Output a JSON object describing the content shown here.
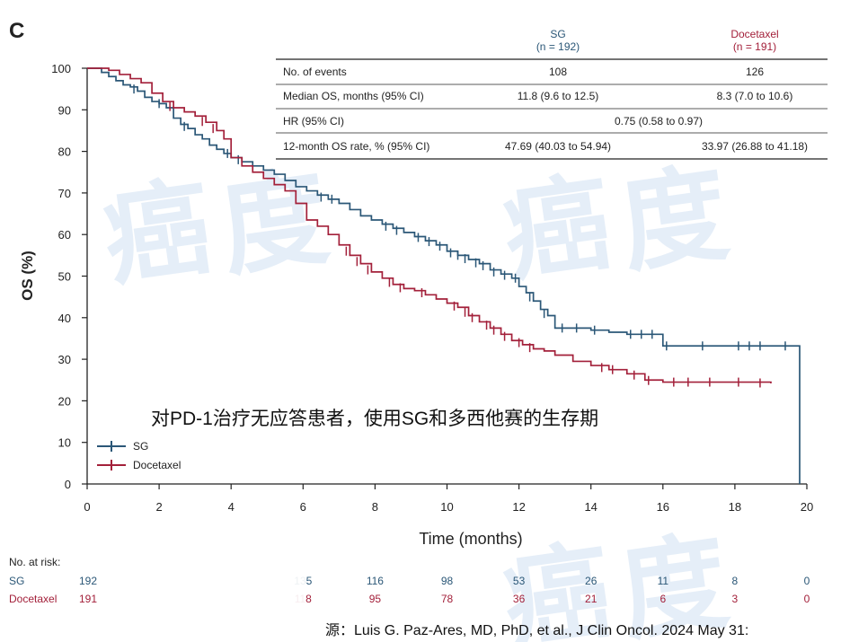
{
  "panel_letter": "C",
  "table": {
    "columns": [
      {
        "name": "SG",
        "n": "(n = 192)"
      },
      {
        "name": "Docetaxel",
        "n": "(n = 191)"
      }
    ],
    "rows": [
      {
        "label": "No. of events",
        "sg": "108",
        "doc": "126"
      },
      {
        "label": "Median OS, months (95% CI)",
        "sg": "11.8 (9.6 to 12.5)",
        "doc": "8.3 (7.0 to 10.6)"
      },
      {
        "label": "HR (95% CI)",
        "merged": "0.75 (0.58 to 0.97)"
      },
      {
        "label": "12-month OS rate, % (95% CI)",
        "sg": "47.69 (40.03 to 54.94)",
        "doc": "33.97 (26.88 to 41.18)"
      }
    ]
  },
  "overlay_caption": "对PD-1治疗无应答患者，使用SG和多西他赛的生存期",
  "source_note": "源：Luis G. Paz-Ares, MD, PhD, et al., J Clin Oncol. 2024 May 31:",
  "watermark_glyphs": [
    "癌",
    "度"
  ],
  "risk_table": {
    "title": "No. at risk:",
    "rows": [
      {
        "name": "SG",
        "values": [
          "192",
          "",
          "",
          "",
          "135",
          "116",
          "98",
          "53",
          "26",
          "11",
          "8",
          "0"
        ]
      },
      {
        "name": "Docetaxel",
        "values": [
          "191",
          "",
          "",
          "",
          "118",
          "95",
          "78",
          "36",
          "21",
          "6",
          "3",
          "0"
        ]
      }
    ]
  },
  "colors": {
    "sg": "#2b5777",
    "docetaxel": "#a3203a",
    "watermark": "#d2e2f3"
  },
  "chart_data": {
    "type": "line",
    "title": "",
    "xlabel": "Time (months)",
    "ylabel": "OS (%)",
    "xlim": [
      0,
      20
    ],
    "ylim": [
      0,
      100
    ],
    "xticks": [
      0,
      2,
      4,
      6,
      8,
      10,
      12,
      14,
      16,
      18,
      20
    ],
    "yticks": [
      0,
      10,
      20,
      30,
      40,
      50,
      60,
      70,
      80,
      90,
      100
    ],
    "legend": "bottom-left",
    "series": [
      {
        "name": "SG",
        "x": [
          0,
          0.2,
          0.4,
          0.6,
          0.8,
          1.0,
          1.2,
          1.4,
          1.6,
          1.8,
          2.0,
          2.2,
          2.4,
          2.6,
          2.8,
          3.0,
          3.2,
          3.4,
          3.6,
          3.8,
          4.0,
          4.3,
          4.6,
          4.9,
          5.2,
          5.5,
          5.8,
          6.1,
          6.4,
          6.7,
          7.0,
          7.3,
          7.6,
          7.9,
          8.2,
          8.5,
          8.8,
          9.1,
          9.4,
          9.7,
          10.0,
          10.3,
          10.6,
          10.9,
          11.2,
          11.5,
          11.8,
          12.0,
          12.2,
          12.4,
          12.6,
          12.8,
          13.0,
          13.5,
          14.0,
          14.5,
          15.0,
          15.5,
          15.9,
          16.0,
          17.0,
          18.0,
          19.0,
          19.8,
          19.8
        ],
        "y": [
          100,
          100,
          99,
          98,
          97,
          96,
          95.5,
          94.5,
          93,
          92,
          91.5,
          90.5,
          88,
          86.5,
          85.5,
          84,
          83,
          81.5,
          80.5,
          79.5,
          78.5,
          77.5,
          76.5,
          75.5,
          74.5,
          73,
          71.5,
          70.5,
          69.5,
          68.5,
          67.5,
          66,
          64.5,
          63.5,
          62.5,
          61.5,
          60.5,
          59.5,
          58.5,
          57.5,
          56,
          55,
          54,
          53,
          51.5,
          50.5,
          49.5,
          47.5,
          46,
          44,
          42,
          40.5,
          37.5,
          37.5,
          37,
          36.5,
          36,
          36,
          36,
          33.2,
          33.2,
          33.2,
          33.2,
          33.2,
          0
        ]
      },
      {
        "name": "Docetaxel",
        "x": [
          0,
          0.3,
          0.6,
          0.9,
          1.2,
          1.5,
          1.8,
          2.1,
          2.4,
          2.7,
          3.0,
          3.3,
          3.6,
          3.8,
          4.0,
          4.3,
          4.6,
          4.9,
          5.2,
          5.5,
          5.8,
          6.1,
          6.4,
          6.7,
          7.0,
          7.3,
          7.6,
          7.9,
          8.2,
          8.5,
          8.8,
          9.1,
          9.4,
          9.7,
          10.0,
          10.3,
          10.6,
          10.9,
          11.2,
          11.5,
          11.8,
          12.1,
          12.4,
          12.7,
          13.0,
          13.5,
          14.0,
          14.5,
          15.0,
          15.5,
          16.0,
          17.0,
          18.0,
          19.0
        ],
        "y": [
          100,
          100,
          99.5,
          98.5,
          97.5,
          96.5,
          94,
          92,
          90.5,
          89.5,
          88.5,
          87,
          85,
          83,
          78.5,
          76.5,
          75,
          73.5,
          72,
          70.5,
          67.5,
          63.5,
          62,
          60,
          57.5,
          55,
          53,
          51,
          49.5,
          48,
          47,
          46.5,
          45.5,
          44.5,
          43.5,
          42.5,
          40.5,
          39,
          37.5,
          36,
          34.5,
          33.5,
          32.5,
          32,
          31,
          29.5,
          28.5,
          27.5,
          26.5,
          25,
          24.5,
          24.5,
          24.5,
          24.2
        ]
      }
    ],
    "censor_marks": {
      "SG": [
        [
          1.3,
          95
        ],
        [
          2.0,
          91.5
        ],
        [
          2.7,
          86
        ],
        [
          3.9,
          79.5
        ],
        [
          4.2,
          78
        ],
        [
          6.5,
          69
        ],
        [
          6.8,
          68.5
        ],
        [
          8.3,
          62
        ],
        [
          8.6,
          61
        ],
        [
          9.2,
          59.3
        ],
        [
          9.5,
          58.3
        ],
        [
          9.8,
          57.2
        ],
        [
          10.1,
          55.6
        ],
        [
          10.3,
          55
        ],
        [
          10.5,
          54.2
        ],
        [
          10.8,
          53.2
        ],
        [
          11.0,
          52.5
        ],
        [
          11.3,
          51
        ],
        [
          11.6,
          50.2
        ],
        [
          11.9,
          49.5
        ],
        [
          12.3,
          45
        ],
        [
          12.7,
          41
        ],
        [
          13.2,
          37.5
        ],
        [
          13.6,
          37.5
        ],
        [
          14.1,
          37
        ],
        [
          15.1,
          36
        ],
        [
          15.4,
          36
        ],
        [
          15.7,
          36
        ],
        [
          16.1,
          33.2
        ],
        [
          17.1,
          33.2
        ],
        [
          18.1,
          33.2
        ],
        [
          18.4,
          33.2
        ],
        [
          18.7,
          33.2
        ],
        [
          19.4,
          33.2
        ]
      ],
      "Docetaxel": [
        [
          2.3,
          90.8
        ],
        [
          3.2,
          87.2
        ],
        [
          3.5,
          85.5
        ],
        [
          7.2,
          56
        ],
        [
          7.5,
          53.5
        ],
        [
          7.8,
          51.5
        ],
        [
          8.4,
          48.5
        ],
        [
          8.7,
          47.2
        ],
        [
          9.3,
          46
        ],
        [
          10.2,
          42.8
        ],
        [
          10.5,
          41.3
        ],
        [
          10.7,
          40
        ],
        [
          11.1,
          38.2
        ],
        [
          11.3,
          37
        ],
        [
          11.6,
          35.5
        ],
        [
          12.0,
          34
        ],
        [
          12.3,
          32.8
        ],
        [
          14.3,
          28
        ],
        [
          14.6,
          27.5
        ],
        [
          15.2,
          26.2
        ],
        [
          15.6,
          24.9
        ],
        [
          16.3,
          24.5
        ],
        [
          16.7,
          24.5
        ],
        [
          17.3,
          24.5
        ],
        [
          18.1,
          24.5
        ],
        [
          18.7,
          24.3
        ]
      ]
    }
  }
}
